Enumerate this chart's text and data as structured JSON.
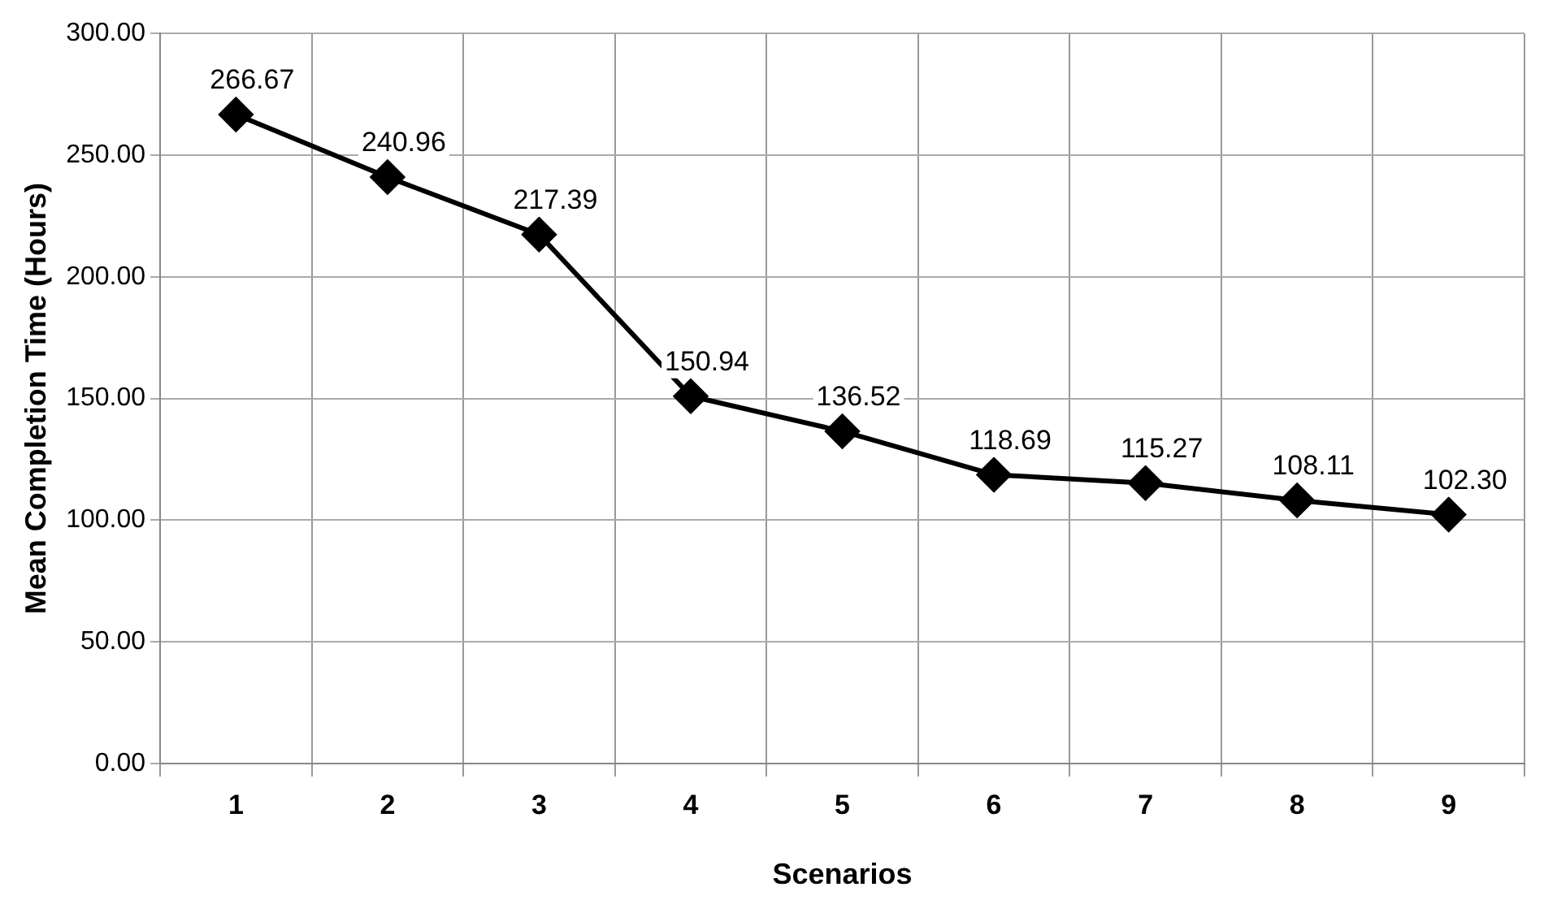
{
  "chart_data": {
    "type": "line",
    "xlabel": "Scenarios",
    "ylabel": "Mean Completion Time (Hours)",
    "categories": [
      "1",
      "2",
      "3",
      "4",
      "5",
      "6",
      "7",
      "8",
      "9"
    ],
    "series": [
      {
        "color": "#000000",
        "values": [
          266.67,
          240.96,
          217.39,
          150.94,
          136.52,
          118.69,
          115.27,
          108.11,
          102.3
        ]
      }
    ],
    "value_labels": [
      "266.67",
      "240.96",
      "217.39",
      "150.94",
      "136.52",
      "118.69",
      "115.27",
      "108.11",
      "102.30"
    ],
    "ylim": [
      0,
      300
    ],
    "yticks": [
      {
        "value": 0,
        "label": "0.00"
      },
      {
        "value": 50,
        "label": "50.00"
      },
      {
        "value": 100,
        "label": "100.00"
      },
      {
        "value": 150,
        "label": "150.00"
      },
      {
        "value": 200,
        "label": "200.00"
      },
      {
        "value": 250,
        "label": "250.00"
      },
      {
        "value": 300,
        "label": "300.00"
      }
    ],
    "grid": true,
    "legend": false,
    "marker": "diamond",
    "line_style": "solid"
  }
}
